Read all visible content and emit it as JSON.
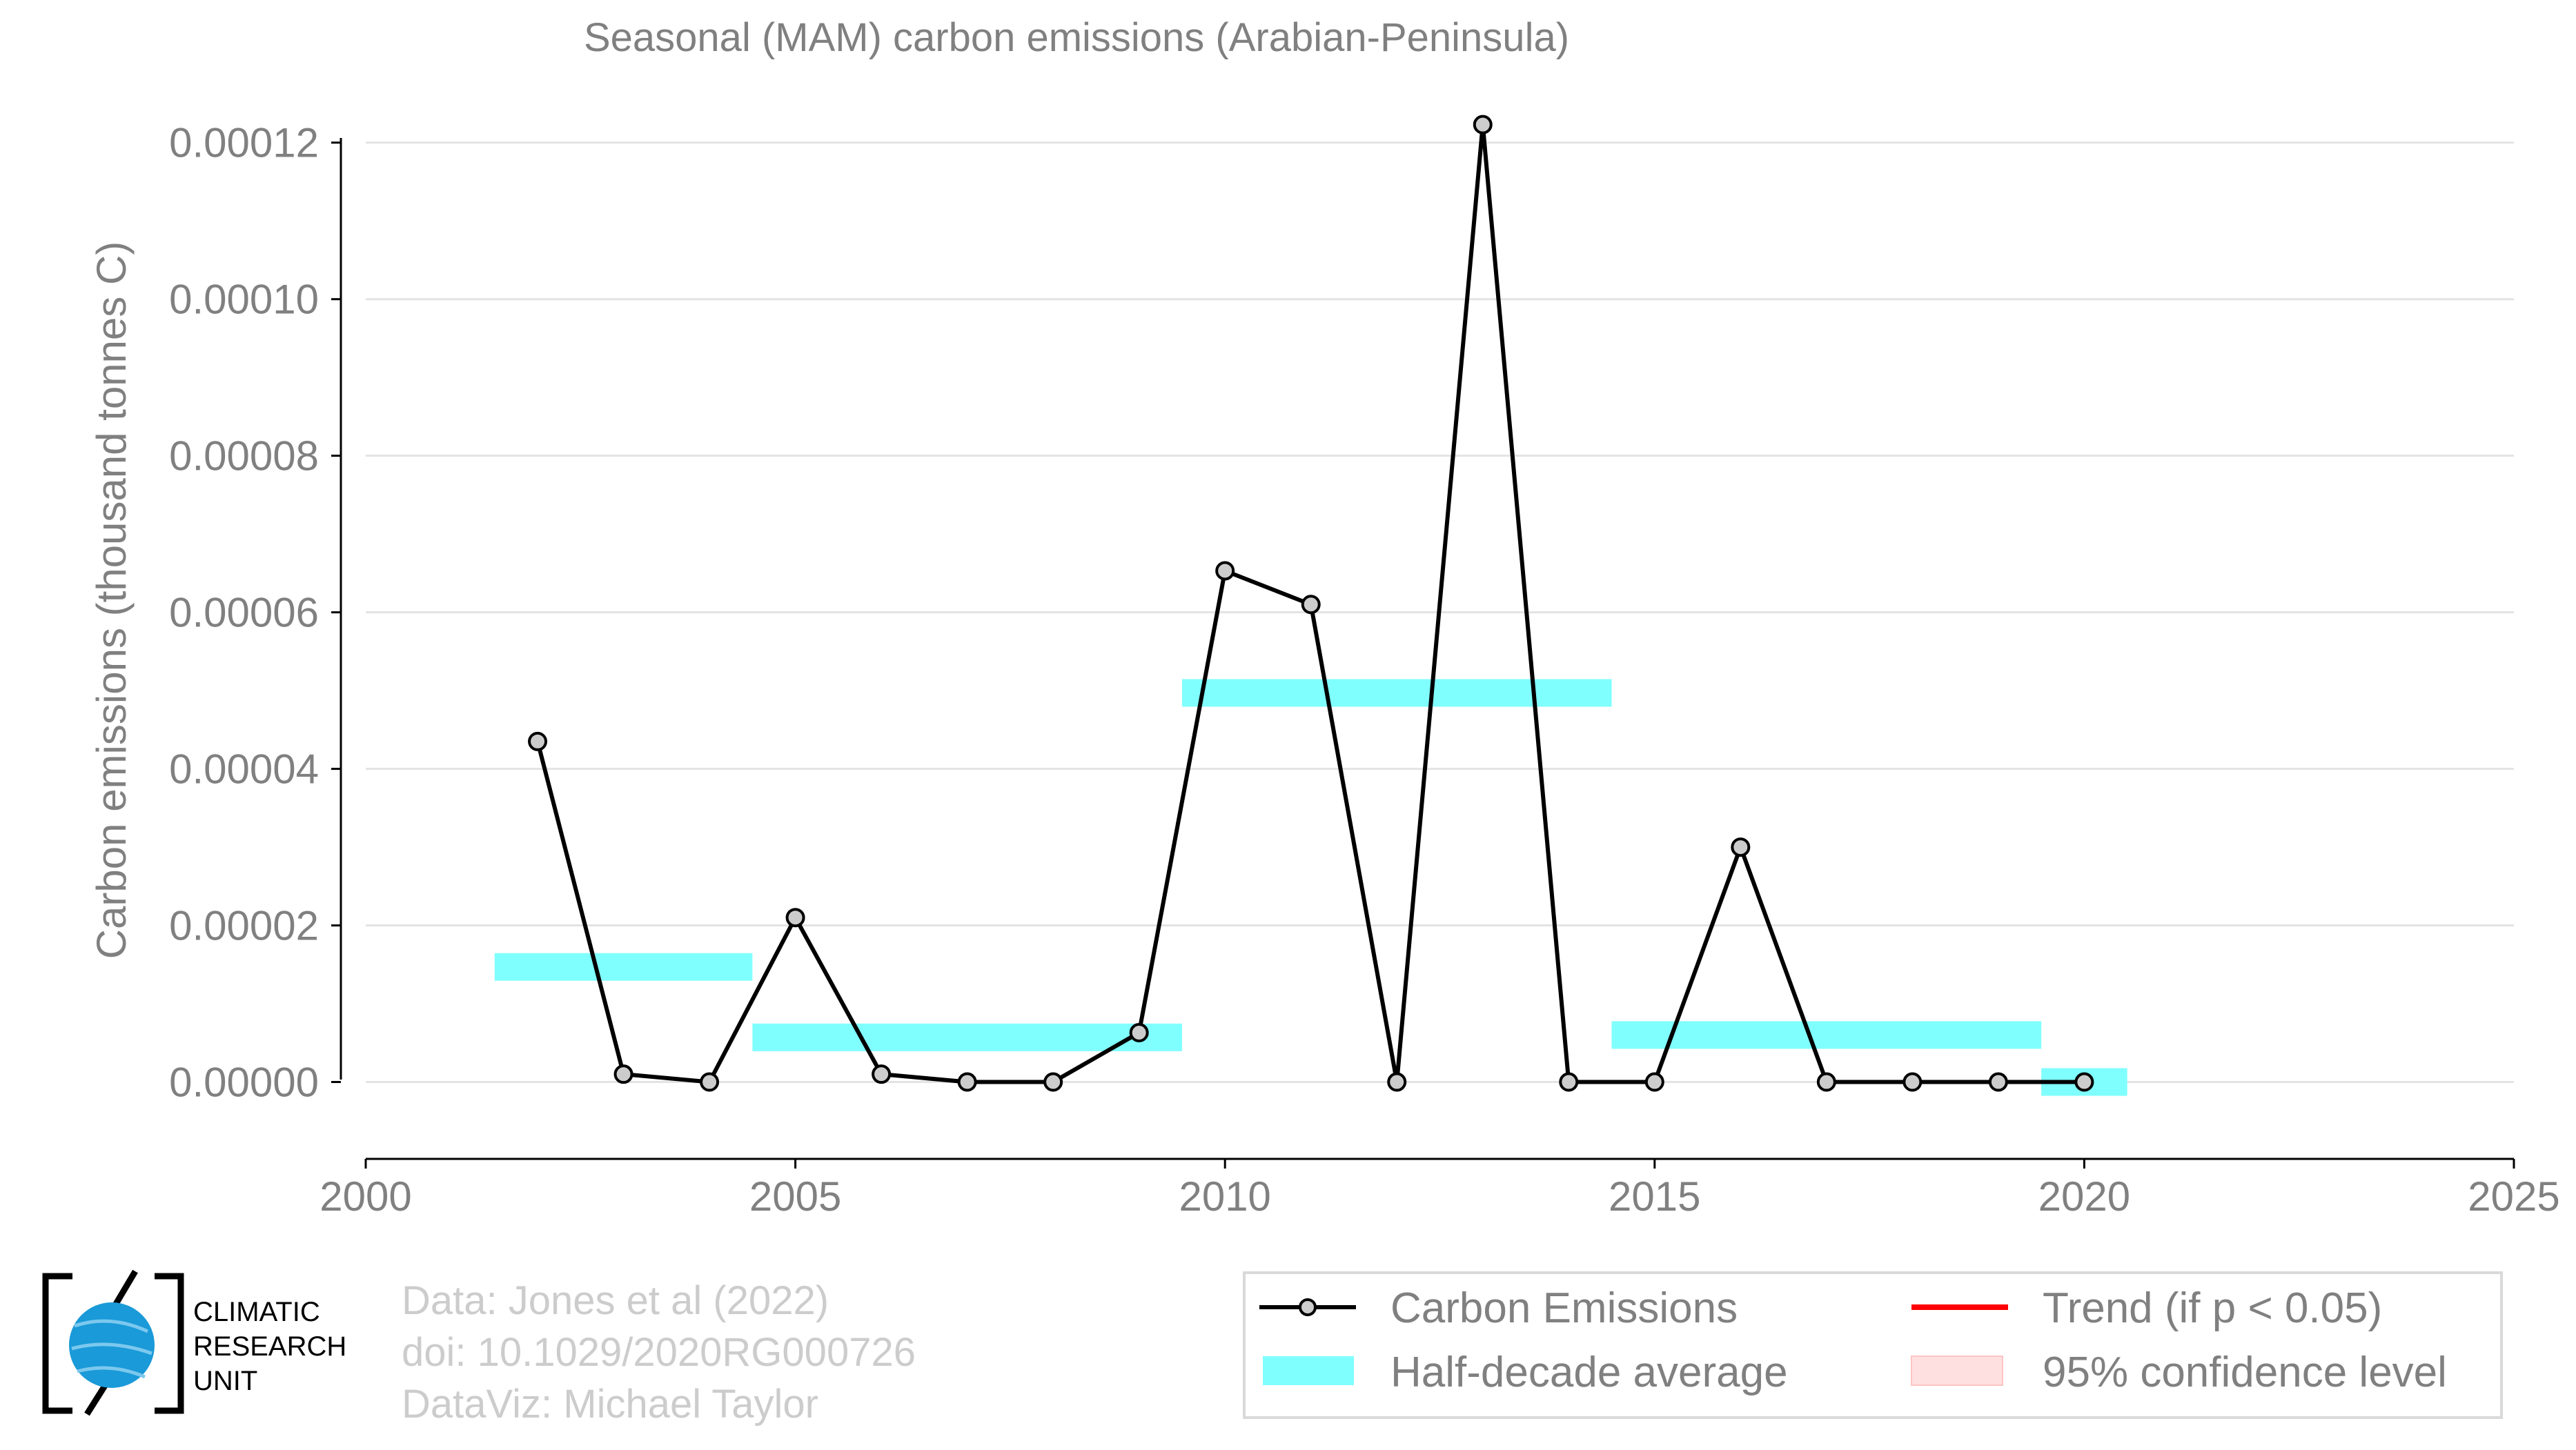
{
  "chart_data": {
    "type": "line",
    "title": "Seasonal (MAM) carbon emissions (Arabian-Peninsula)",
    "xlabel": "",
    "ylabel": "Carbon emissions (thousand tonnes C)",
    "xlim": [
      2000,
      2025
    ],
    "ylim": [
      -1e-05,
      0.000125
    ],
    "x_ticks": [
      2000,
      2005,
      2010,
      2015,
      2020,
      2025
    ],
    "x_tick_labels": [
      "2000",
      "2005",
      "2010",
      "2015",
      "2020",
      "2025"
    ],
    "y_ticks": [
      0,
      2e-05,
      4e-05,
      6e-05,
      8e-05,
      0.0001,
      0.00012
    ],
    "y_tick_labels": [
      "0.00000",
      "0.00002",
      "0.00004",
      "0.00006",
      "0.00008",
      "0.00010",
      "0.00012"
    ],
    "grid": true,
    "series": [
      {
        "name": "Carbon Emissions",
        "color": "#000000",
        "marker_fill": "#cccccc",
        "x": [
          2002,
          2003,
          2004,
          2005,
          2006,
          2007,
          2008,
          2009,
          2010,
          2011,
          2012,
          2013,
          2014,
          2015,
          2016,
          2017,
          2018,
          2019,
          2020
        ],
        "y": [
          4.35e-05,
          1e-06,
          0.0,
          2.1e-05,
          1e-06,
          0.0,
          0.0,
          6.3e-06,
          6.53e-05,
          6.1e-05,
          0.0,
          0.0001223,
          0.0,
          0.0,
          3e-05,
          0.0,
          0.0,
          0.0,
          0.0
        ]
      }
    ],
    "half_decade_average": {
      "name": "Half-decade average",
      "color": "#80ffff",
      "segments": [
        {
          "x0": 2001.5,
          "x1": 2004.5,
          "y": 1.47e-05
        },
        {
          "x0": 2004.5,
          "x1": 2009.5,
          "y": 5.7e-06
        },
        {
          "x0": 2009.5,
          "x1": 2014.5,
          "y": 4.97e-05
        },
        {
          "x0": 2014.5,
          "x1": 2019.5,
          "y": 6e-06
        },
        {
          "x0": 2019.5,
          "x1": 2020.5,
          "y": 0.0
        }
      ]
    },
    "legend": {
      "placement": "bottom-right",
      "items": [
        {
          "label": "Carbon Emissions",
          "kind": "line-marker",
          "color": "#000000"
        },
        {
          "label": "Trend (if p < 0.05)",
          "kind": "line",
          "color": "#ff0000"
        },
        {
          "label": "Half-decade average",
          "kind": "band",
          "color": "#80ffff"
        },
        {
          "label": "95% confidence level",
          "kind": "band",
          "color": "#ffe0e0"
        }
      ]
    }
  },
  "credits": {
    "line1": "Data: Jones et al (2022)",
    "line2": "doi: 10.1029/2020RG000726",
    "line3": "DataViz: Michael Taylor"
  },
  "logo": {
    "line1": "CLIMATIC",
    "line2": "RESEARCH",
    "line3": "UNIT"
  }
}
